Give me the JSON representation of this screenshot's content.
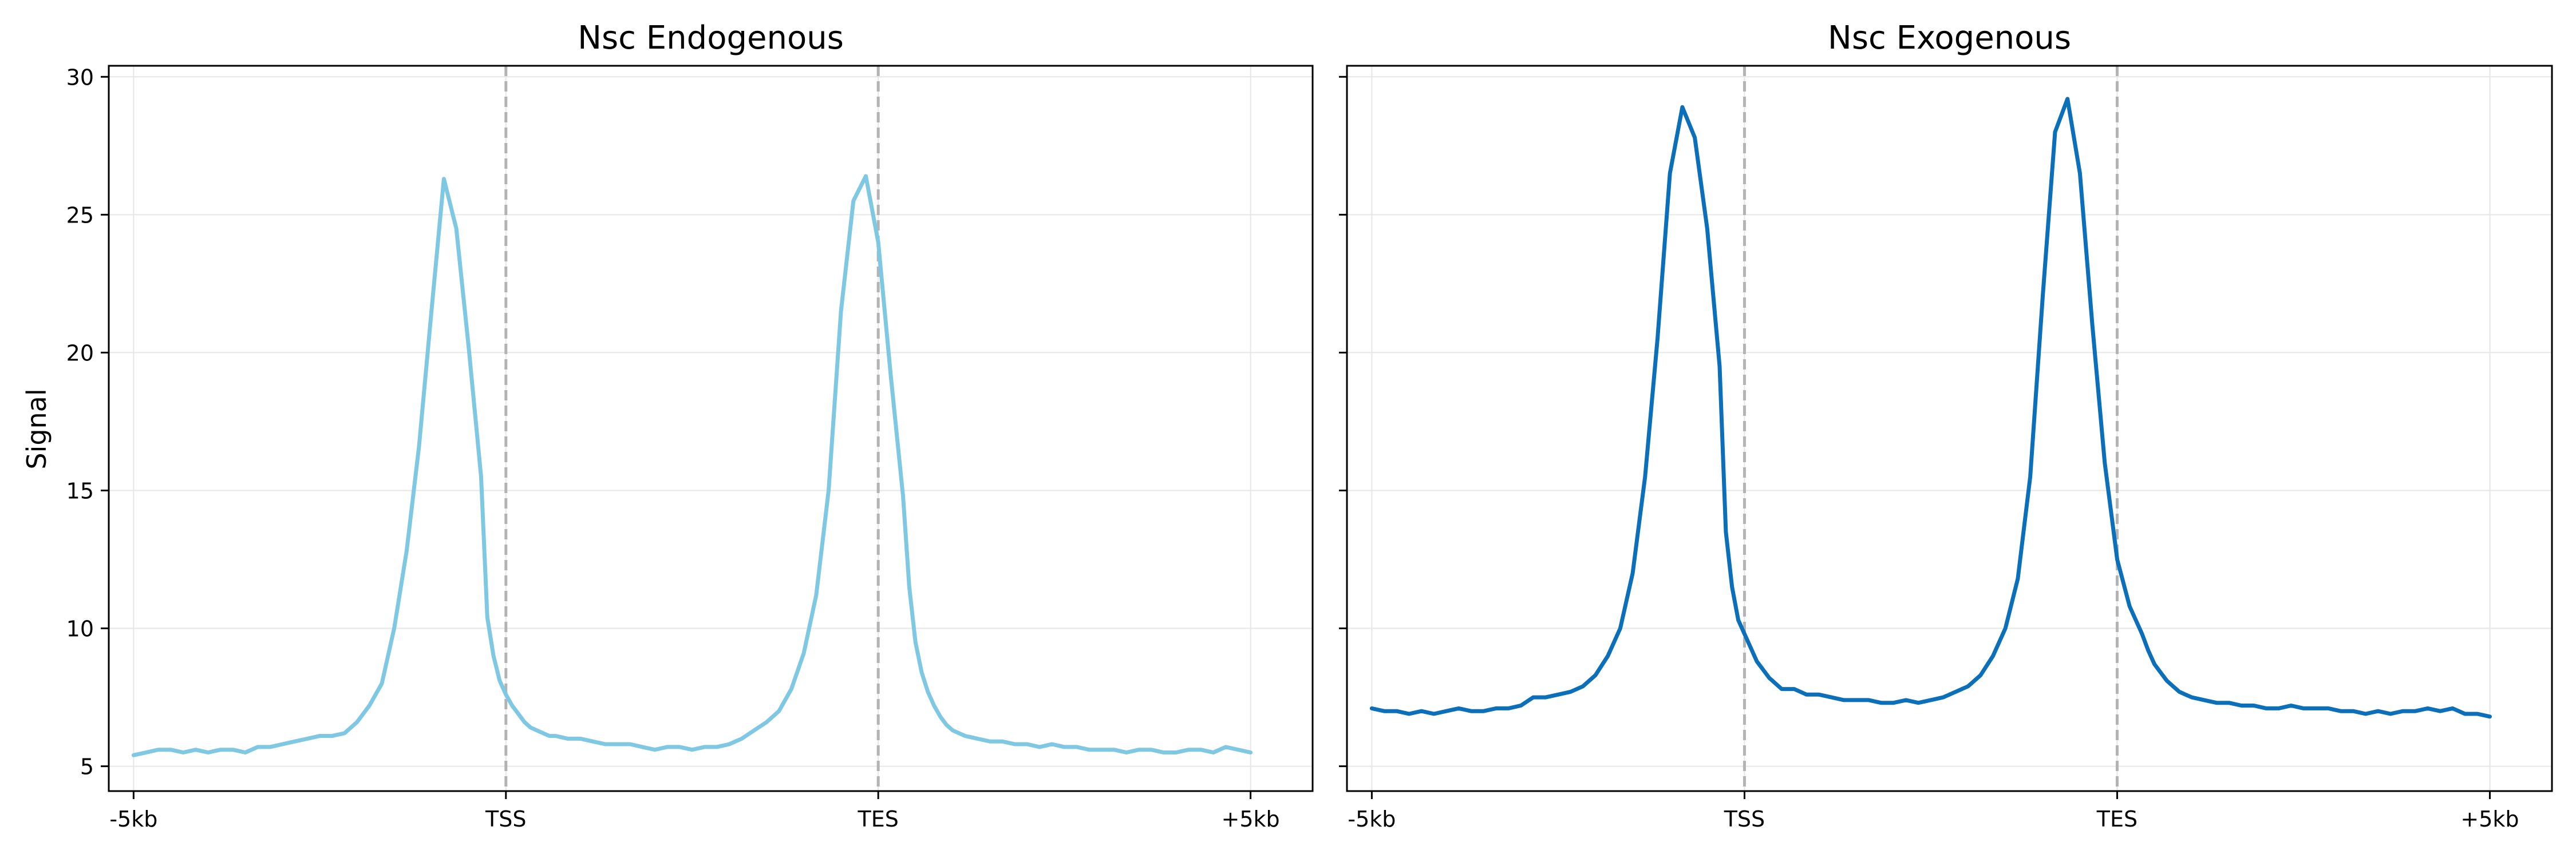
{
  "figure": {
    "ylabel": "Signal",
    "yticks": [
      "5",
      "10",
      "15",
      "20",
      "25",
      "30"
    ],
    "reference_lines": "dashed gray vertical lines at TSS and TES",
    "colors": {
      "endogenous": "#7ec8e3",
      "exogenous": "#0b6fba",
      "reference_line": "#b3b3b3",
      "grid": "#e6e6e6",
      "axes": "#000000"
    }
  },
  "chart_data": [
    {
      "type": "line",
      "title": "Nsc Endogenous",
      "ylabel": "Signal",
      "xlabel": "",
      "xticks": [
        "-5kb",
        "TSS",
        "TES",
        "+5kb"
      ],
      "ylim": [
        4.1,
        30.4
      ],
      "yticks": [
        5,
        10,
        15,
        20,
        25,
        30
      ],
      "grid": true,
      "color": "#7ec8e3",
      "x": [
        0,
        0.1,
        0.2,
        0.3,
        0.4,
        0.5,
        0.6,
        0.7,
        0.8,
        0.9,
        1.0,
        1.1,
        1.2,
        1.3,
        1.4,
        1.5,
        1.6,
        1.7,
        1.8,
        1.9,
        2.0,
        2.1,
        2.2,
        2.3,
        2.4,
        2.5,
        2.6,
        2.7,
        2.8,
        2.85,
        2.9,
        2.95,
        3.0,
        3.05,
        3.1,
        3.15,
        3.2,
        3.25,
        3.3,
        3.35,
        3.4,
        3.5,
        3.6,
        3.7,
        3.8,
        3.9,
        4.0,
        4.1,
        4.2,
        4.3,
        4.4,
        4.5,
        4.6,
        4.7,
        4.8,
        4.9,
        5.0,
        5.1,
        5.2,
        5.3,
        5.4,
        5.5,
        5.6,
        5.7,
        5.8,
        5.9,
        6.0,
        6.1,
        6.2,
        6.25,
        6.3,
        6.35,
        6.4,
        6.45,
        6.5,
        6.55,
        6.6,
        6.7,
        6.8,
        6.9,
        7.0,
        7.1,
        7.2,
        7.3,
        7.4,
        7.5,
        7.6,
        7.7,
        7.8,
        7.9,
        8.0,
        8.1,
        8.2,
        8.3,
        8.4,
        8.5,
        8.6,
        8.7,
        8.8,
        8.9,
        9.0
      ],
      "y": [
        5.4,
        5.5,
        5.6,
        5.6,
        5.5,
        5.6,
        5.5,
        5.6,
        5.6,
        5.5,
        5.7,
        5.7,
        5.8,
        5.9,
        6.0,
        6.1,
        6.1,
        6.2,
        6.6,
        7.2,
        8.0,
        10.0,
        12.8,
        16.6,
        21.5,
        26.3,
        24.5,
        20.2,
        15.5,
        10.4,
        9.0,
        8.1,
        7.6,
        7.2,
        6.9,
        6.6,
        6.4,
        6.3,
        6.2,
        6.1,
        6.1,
        6.0,
        6.0,
        5.9,
        5.8,
        5.8,
        5.8,
        5.7,
        5.6,
        5.7,
        5.7,
        5.6,
        5.7,
        5.7,
        5.8,
        6.0,
        6.3,
        6.6,
        7.0,
        7.8,
        9.1,
        11.2,
        15.0,
        21.5,
        25.5,
        26.4,
        24.0,
        19.2,
        14.8,
        11.5,
        9.5,
        8.4,
        7.7,
        7.2,
        6.8,
        6.5,
        6.3,
        6.1,
        6.0,
        5.9,
        5.9,
        5.8,
        5.8,
        5.7,
        5.8,
        5.7,
        5.7,
        5.6,
        5.6,
        5.6,
        5.5,
        5.6,
        5.6,
        5.5,
        5.5,
        5.6,
        5.6,
        5.5,
        5.7,
        5.6,
        5.5
      ]
    },
    {
      "type": "line",
      "title": "Nsc Exogenous",
      "ylabel": "",
      "xlabel": "",
      "xticks": [
        "-5kb",
        "TSS",
        "TES",
        "+5kb"
      ],
      "ylim": [
        4.1,
        30.4
      ],
      "yticks": [
        5,
        10,
        15,
        20,
        25,
        30
      ],
      "grid": true,
      "color": "#0b6fba",
      "x": [
        0,
        0.1,
        0.2,
        0.3,
        0.4,
        0.5,
        0.6,
        0.7,
        0.8,
        0.9,
        1.0,
        1.1,
        1.2,
        1.3,
        1.4,
        1.5,
        1.6,
        1.7,
        1.8,
        1.9,
        2.0,
        2.1,
        2.2,
        2.3,
        2.4,
        2.5,
        2.6,
        2.7,
        2.8,
        2.85,
        2.9,
        2.95,
        3.0,
        3.05,
        3.1,
        3.15,
        3.2,
        3.25,
        3.3,
        3.35,
        3.4,
        3.5,
        3.6,
        3.7,
        3.8,
        3.9,
        4.0,
        4.1,
        4.2,
        4.3,
        4.4,
        4.5,
        4.6,
        4.7,
        4.8,
        4.9,
        5.0,
        5.1,
        5.2,
        5.3,
        5.4,
        5.5,
        5.6,
        5.7,
        5.8,
        5.9,
        6.0,
        6.1,
        6.2,
        6.25,
        6.3,
        6.35,
        6.4,
        6.45,
        6.5,
        6.55,
        6.6,
        6.7,
        6.8,
        6.9,
        7.0,
        7.1,
        7.2,
        7.3,
        7.4,
        7.5,
        7.6,
        7.7,
        7.8,
        7.9,
        8.0,
        8.1,
        8.2,
        8.3,
        8.4,
        8.5,
        8.6,
        8.7,
        8.8,
        8.9,
        9.0
      ],
      "y": [
        7.1,
        7.0,
        7.0,
        6.9,
        7.0,
        6.9,
        7.0,
        7.1,
        7.0,
        7.0,
        7.1,
        7.1,
        7.2,
        7.5,
        7.5,
        7.6,
        7.7,
        7.9,
        8.3,
        9.0,
        10.0,
        12.0,
        15.5,
        20.5,
        26.5,
        28.9,
        27.8,
        24.5,
        19.5,
        13.5,
        11.5,
        10.3,
        9.8,
        9.3,
        8.8,
        8.5,
        8.2,
        8.0,
        7.8,
        7.8,
        7.8,
        7.6,
        7.6,
        7.5,
        7.4,
        7.4,
        7.4,
        7.3,
        7.3,
        7.4,
        7.3,
        7.4,
        7.5,
        7.7,
        7.9,
        8.3,
        9.0,
        10.0,
        11.8,
        15.5,
        22.0,
        28.0,
        29.2,
        26.5,
        21.0,
        16.0,
        12.5,
        10.8,
        9.8,
        9.2,
        8.7,
        8.4,
        8.1,
        7.9,
        7.7,
        7.6,
        7.5,
        7.4,
        7.3,
        7.3,
        7.2,
        7.2,
        7.1,
        7.1,
        7.2,
        7.1,
        7.1,
        7.1,
        7.0,
        7.0,
        6.9,
        7.0,
        6.9,
        7.0,
        7.0,
        7.1,
        7.0,
        7.1,
        6.9,
        6.9,
        6.8
      ]
    }
  ]
}
